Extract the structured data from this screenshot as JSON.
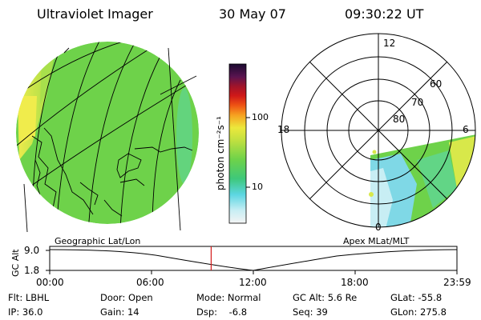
{
  "header": {
    "instrument": "Ultraviolet Imager",
    "date": "30 May 07",
    "time": "09:30:22 UT"
  },
  "colorbar": {
    "unit_label": "photon cm⁻²s⁻¹",
    "ticks": [
      "100",
      "10"
    ]
  },
  "polar_plot": {
    "mlt_labels": [
      "12",
      "18",
      "6",
      "0"
    ],
    "lat_labels": [
      "60",
      "70",
      "80"
    ]
  },
  "maps": {
    "left_title": "Geographic Lat/Lon",
    "right_title": "Apex MLat/MLT"
  },
  "altitude_plot": {
    "axis_label": "GC Alt",
    "y_ticks": [
      "9.0",
      "1.8"
    ],
    "x_ticks": [
      "00:00",
      "06:00",
      "12:00",
      "18:00",
      "23:59"
    ],
    "marker_time": "09:30:22"
  },
  "status": {
    "filter": "Flt: LBHL",
    "ip": "IP: 36.0",
    "door": "Door: Open",
    "gain": "Gain: 14",
    "mode": "Mode: Normal",
    "dsp": "Dsp:    -6.8",
    "gc_alt": "GC Alt: 5.6 Re",
    "seq": "Seq: 39",
    "glat": "GLat: -55.8",
    "glon": "GLon: 275.8"
  },
  "colors": {
    "map_green": "#6ed24a",
    "map_yellow": "#e8e44a",
    "map_cyan": "#7fd8e6",
    "marker_red": "#d41c1c"
  }
}
